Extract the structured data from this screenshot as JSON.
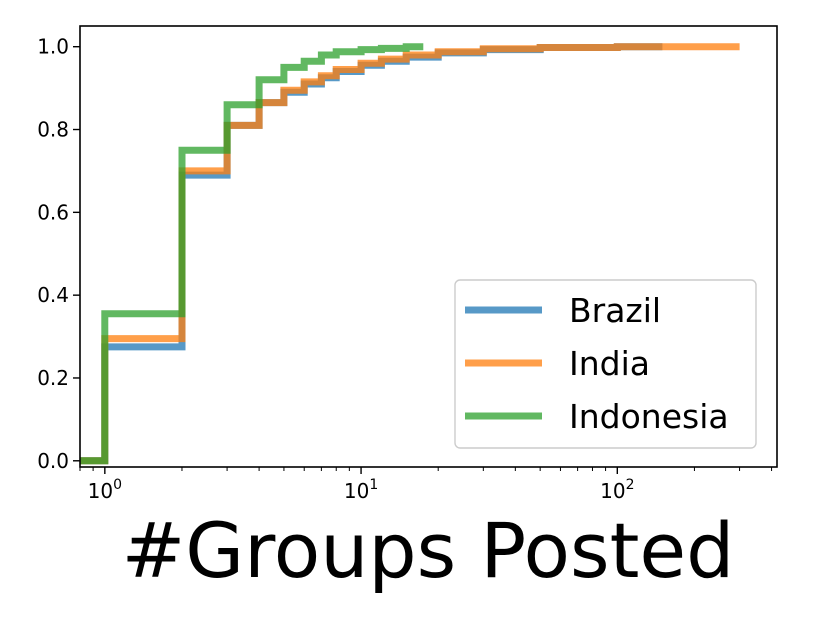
{
  "chart_data": {
    "type": "line",
    "subtype": "step-cdf",
    "xscale": "log",
    "xlabel": "#Groups  Posted",
    "ylabel": "",
    "title": "",
    "xlim": [
      0.8,
      420
    ],
    "ylim": [
      -0.015,
      1.05
    ],
    "xticks": [
      {
        "value": 1,
        "base": "10",
        "exp": "0"
      },
      {
        "value": 10,
        "base": "10",
        "exp": "1"
      },
      {
        "value": 100,
        "base": "10",
        "exp": "2"
      }
    ],
    "yticks": [
      "0.0",
      "0.2",
      "0.4",
      "0.6",
      "0.8",
      "1.0"
    ],
    "legend_position": "lower-right",
    "grid": false,
    "series": [
      {
        "name": "Brazil",
        "color": "#1f77b4",
        "x": [
          0.8,
          1,
          2,
          3,
          4,
          5,
          6,
          7,
          8,
          10,
          12,
          15,
          20,
          30,
          50,
          100,
          150
        ],
        "y": [
          0.0,
          0.275,
          0.69,
          0.81,
          0.865,
          0.89,
          0.91,
          0.925,
          0.94,
          0.955,
          0.965,
          0.975,
          0.985,
          0.993,
          0.998,
          1.0,
          1.0
        ]
      },
      {
        "name": "India",
        "color": "#ff7f0e",
        "x": [
          0.8,
          1,
          2,
          3,
          4,
          5,
          6,
          7,
          8,
          10,
          12,
          15,
          20,
          30,
          50,
          100,
          300
        ],
        "y": [
          0.0,
          0.295,
          0.7,
          0.81,
          0.865,
          0.895,
          0.915,
          0.93,
          0.945,
          0.96,
          0.97,
          0.98,
          0.988,
          0.995,
          0.998,
          1.0,
          1.0
        ]
      },
      {
        "name": "Indonesia",
        "color": "#2ca02c",
        "x": [
          0.8,
          1,
          2,
          3,
          4,
          5,
          6,
          7,
          8,
          10,
          12,
          15,
          17.5
        ],
        "y": [
          0.0,
          0.355,
          0.75,
          0.86,
          0.92,
          0.95,
          0.965,
          0.98,
          0.988,
          0.993,
          0.996,
          1.0,
          1.0
        ]
      }
    ]
  }
}
